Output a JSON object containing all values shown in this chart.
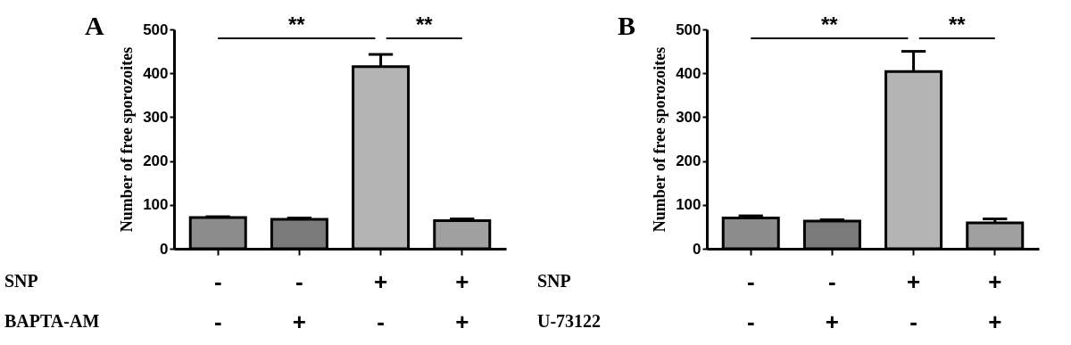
{
  "chart_data": [
    {
      "type": "bar",
      "title": "A",
      "ylabel": "Number of free sporozoites",
      "categories": [
        "-\n-",
        "-\n+",
        "+\n-",
        "+\n+"
      ],
      "values": [
        71,
        67,
        415,
        64
      ],
      "errors": [
        [
          71,
          73
        ],
        [
          67,
          70
        ],
        [
          415,
          443
        ],
        [
          64,
          68
        ]
      ],
      "colors": [
        "#8c8c8c",
        "#7a7a7a",
        "#b4b4b4",
        "#a0a0a0"
      ],
      "ylim": [
        0,
        500
      ],
      "yticks": [
        0,
        100,
        200,
        300,
        400,
        500
      ],
      "grid": false,
      "legend": false,
      "annotations": [
        "**",
        "**",
        "SNP",
        "BAPTA-AM"
      ]
    },
    {
      "type": "bar",
      "title": "B",
      "ylabel": "Number of free sporozoites",
      "categories": [
        "-\n-",
        "-\n+",
        "+\n-",
        "+\n+"
      ],
      "values": [
        70,
        63,
        404,
        59
      ],
      "errors": [
        [
          70,
          75
        ],
        [
          63,
          66
        ],
        [
          404,
          450
        ],
        [
          59,
          68
        ]
      ],
      "colors": [
        "#8c8c8c",
        "#7a7a7a",
        "#b4b4b4",
        "#a0a0a0"
      ],
      "ylim": [
        0,
        500
      ],
      "yticks": [
        0,
        100,
        200,
        300,
        400,
        500
      ],
      "grid": false,
      "legend": false,
      "annotations": [
        "**",
        "**",
        "SNP",
        "U-73122"
      ]
    }
  ]
}
